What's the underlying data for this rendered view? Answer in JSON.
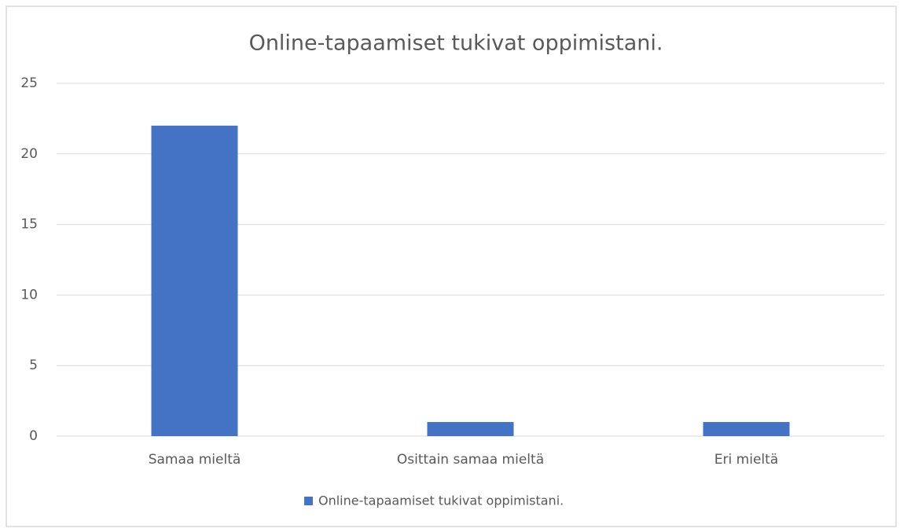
{
  "chart_data": {
    "type": "bar",
    "title": "Online-tapaamiset tukivat oppimistani.",
    "categories": [
      "Samaa mieltä",
      "Osittain samaa mieltä",
      "Eri mieltä"
    ],
    "series": [
      {
        "name": "Online-tapaamiset tukivat oppimistani.",
        "color": "#4472c4",
        "values": [
          22,
          1,
          1
        ]
      }
    ],
    "ylim": [
      0,
      25
    ],
    "yticks": [
      0,
      5,
      10,
      15,
      20,
      25
    ],
    "grid": true,
    "legend": "bottom"
  }
}
